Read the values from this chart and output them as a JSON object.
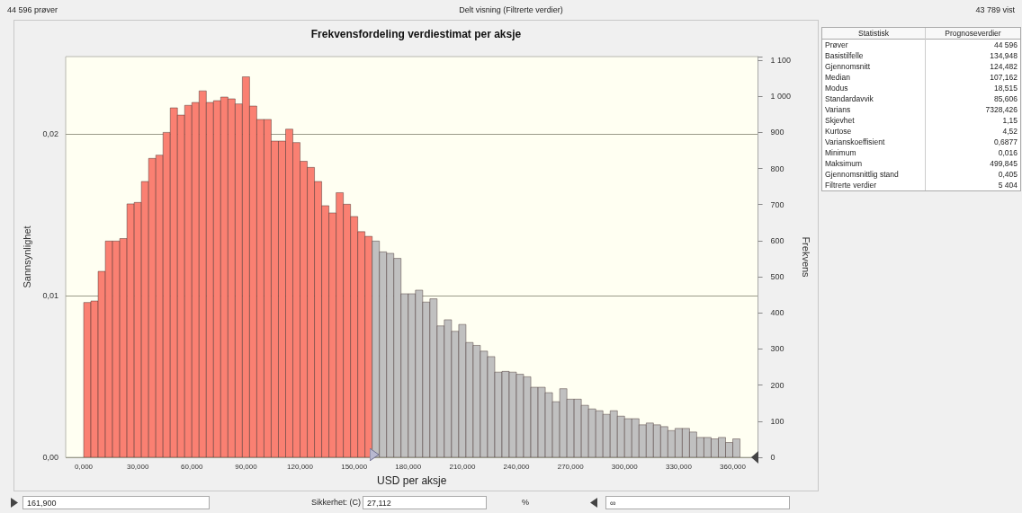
{
  "chart_data": [
    {
      "type": "histogram",
      "title": "Frekvensfordeling verdiestimat per aksje",
      "xlabel": "USD per aksje",
      "ylabel": "Sannsynlighet",
      "y2label": "Frekvens",
      "bins": [
        0,
        4,
        8,
        12,
        16,
        20,
        24,
        28,
        32,
        36,
        40,
        44,
        48,
        52,
        56,
        60,
        64,
        68,
        72,
        76,
        80,
        84,
        88,
        92,
        96,
        100,
        104,
        108,
        112,
        116,
        120,
        124,
        128,
        132,
        136,
        140,
        144,
        148,
        152,
        156,
        160,
        164,
        168,
        172,
        176,
        180,
        184,
        188,
        192,
        196,
        200,
        204,
        208,
        212,
        216,
        220,
        224,
        228,
        232,
        236,
        240,
        244,
        248,
        252,
        256,
        260,
        264,
        268,
        272,
        276,
        280,
        284,
        288,
        292,
        296,
        300,
        304,
        308,
        312,
        316,
        320,
        324,
        328,
        332,
        336,
        340,
        344,
        348,
        352,
        356,
        360,
        364
      ],
      "series": [
        {
          "axis": "y2",
          "values": [
            429,
            433,
            515,
            599,
            599,
            606,
            702,
            706,
            764,
            828,
            837,
            900,
            968,
            948,
            975,
            983,
            1015,
            983,
            988,
            998,
            993,
            979,
            1054,
            973,
            936,
            936,
            876,
            876,
            909,
            872,
            820,
            803,
            764,
            697,
            677,
            733,
            701,
            667,
            625,
            612,
            599,
            569,
            565,
            551,
            453,
            453,
            463,
            430,
            439,
            364,
            381,
            349,
            368,
            318,
            310,
            294,
            279,
            236,
            238,
            236,
            230,
            223,
            194,
            194,
            179,
            154,
            190,
            161,
            161,
            144,
            134,
            129,
            119,
            129,
            114,
            107,
            107,
            90,
            95,
            90,
            85,
            74,
            80,
            80,
            70,
            55,
            55,
            51,
            55,
            41,
            51
          ],
          "colors": [
            "#fa8072",
            "#fa8072",
            "#fa8072",
            "#fa8072",
            "#fa8072",
            "#fa8072",
            "#fa8072",
            "#fa8072",
            "#fa8072",
            "#fa8072",
            "#fa8072",
            "#fa8072",
            "#fa8072",
            "#fa8072",
            "#fa8072",
            "#fa8072",
            "#fa8072",
            "#fa8072",
            "#fa8072",
            "#fa8072",
            "#fa8072",
            "#fa8072",
            "#fa8072",
            "#fa8072",
            "#fa8072",
            "#fa8072",
            "#fa8072",
            "#fa8072",
            "#fa8072",
            "#fa8072",
            "#fa8072",
            "#fa8072",
            "#fa8072",
            "#fa8072",
            "#fa8072",
            "#fa8072",
            "#fa8072",
            "#fa8072",
            "#fa8072",
            "#fa8072",
            "#c0c0c0",
            "#c0c0c0",
            "#c0c0c0",
            "#c0c0c0",
            "#c0c0c0",
            "#c0c0c0",
            "#c0c0c0",
            "#c0c0c0",
            "#c0c0c0",
            "#c0c0c0",
            "#c0c0c0",
            "#c0c0c0",
            "#c0c0c0",
            "#c0c0c0",
            "#c0c0c0",
            "#c0c0c0",
            "#c0c0c0",
            "#c0c0c0",
            "#c0c0c0",
            "#c0c0c0",
            "#c0c0c0",
            "#c0c0c0",
            "#c0c0c0",
            "#c0c0c0",
            "#c0c0c0",
            "#c0c0c0",
            "#c0c0c0",
            "#c0c0c0",
            "#c0c0c0",
            "#c0c0c0",
            "#c0c0c0",
            "#c0c0c0",
            "#c0c0c0",
            "#c0c0c0",
            "#c0c0c0",
            "#c0c0c0",
            "#c0c0c0",
            "#c0c0c0",
            "#c0c0c0",
            "#c0c0c0",
            "#c0c0c0",
            "#c0c0c0",
            "#c0c0c0",
            "#c0c0c0",
            "#c0c0c0",
            "#c0c0c0",
            "#c0c0c0",
            "#c0c0c0",
            "#c0c0c0",
            "#c0c0c0",
            "#c0c0c0"
          ]
        }
      ],
      "xlim": [
        -10,
        374
      ],
      "xticks": [
        {
          "value": 0,
          "label": "0,000"
        },
        {
          "value": 30,
          "label": "30,000"
        },
        {
          "value": 60,
          "label": "60,000"
        },
        {
          "value": 90,
          "label": "90,000"
        },
        {
          "value": 120,
          "label": "120,000"
        },
        {
          "value": 150,
          "label": "150,000"
        },
        {
          "value": 180,
          "label": "180,000"
        },
        {
          "value": 210,
          "label": "210,000"
        },
        {
          "value": 240,
          "label": "240,000"
        },
        {
          "value": 270,
          "label": "270,000"
        },
        {
          "value": 300,
          "label": "300,000"
        },
        {
          "value": 330,
          "label": "330,000"
        },
        {
          "value": 360,
          "label": "360,000"
        }
      ],
      "ylim": [
        0,
        0.0248
      ],
      "yticks": [
        {
          "value": 0,
          "label": "0,00"
        },
        {
          "value": 0.01,
          "label": "0,01"
        },
        {
          "value": 0.02,
          "label": "0,02"
        }
      ],
      "y2lim": [
        0,
        1110
      ],
      "y2ticks": [
        0,
        100,
        200,
        300,
        400,
        500,
        600,
        700,
        800,
        900,
        {
          "value": 1000,
          "label": "1 000"
        },
        {
          "value": 1100,
          "label": "1 100"
        }
      ],
      "grid": "y",
      "annotations": [
        "44 596 prøver",
        "Delt visning (Filtrerte verdier)",
        "43 789 vist",
        "Sikkerhet: (C)",
        "27,112",
        "%",
        "161,900",
        "∞"
      ]
    },
    {
      "type": "other",
      "annotations": [
        "Statistisk",
        "Prognoseverdier",
        "Prøver",
        "44 596",
        "Basistilfelle",
        "134,948",
        "Gjennomsnitt",
        "124,482",
        "Median",
        "107,162",
        "Modus",
        "18,515",
        "Standardavvik",
        "85,606",
        "Varians",
        "7328,426",
        "Skjevhet",
        "1,15",
        "Kurtose",
        "4,52",
        "Varianskoeffisient",
        "0,6877",
        "Minimum",
        "0,016",
        "Maksimum",
        "499,845",
        "Gjennomsnittlig stand",
        "0,405",
        "Filtrerte verdier",
        "5 404"
      ]
    }
  ]
}
